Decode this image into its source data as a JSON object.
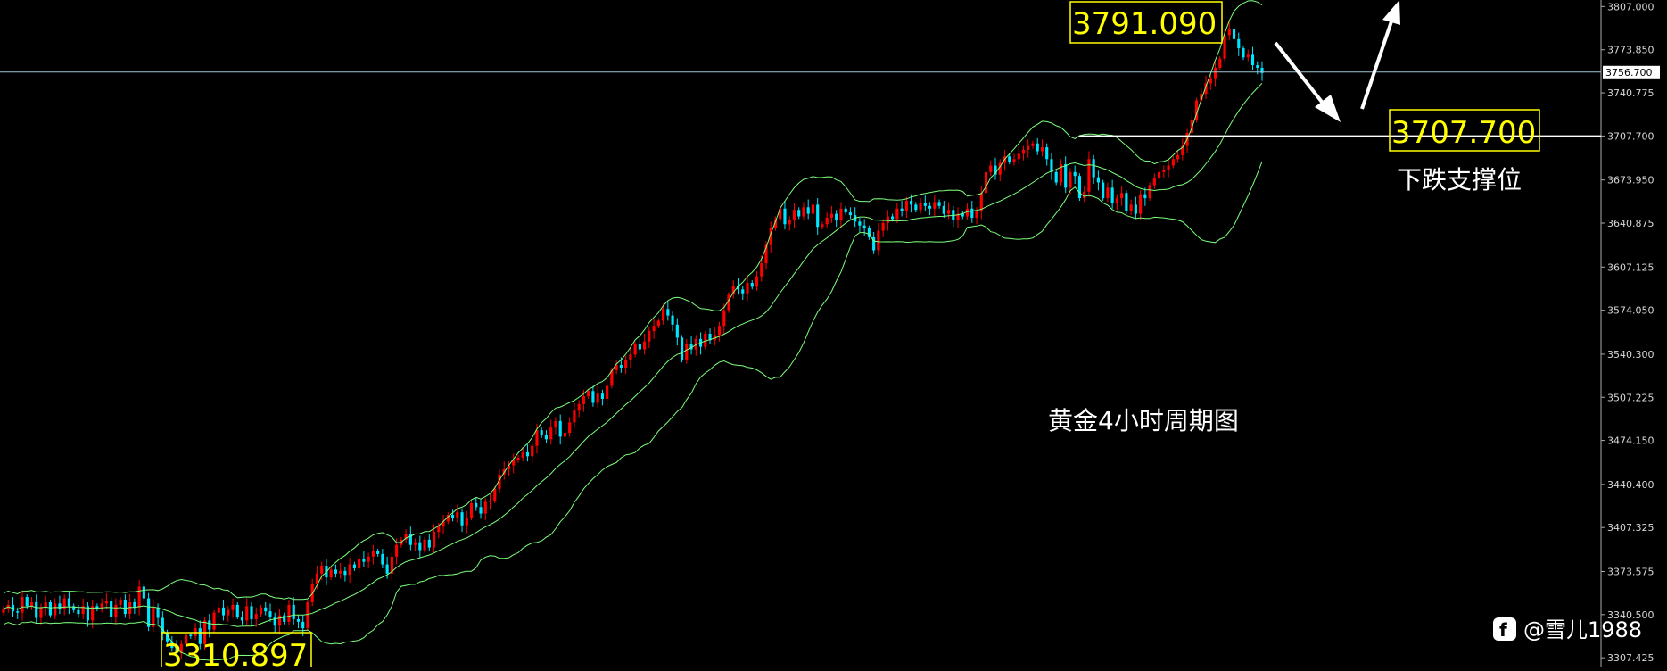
{
  "chart_data": {
    "type": "candlestick",
    "title": "黄金4小时周期图",
    "y_axis": {
      "ticks": [
        "3807.000",
        "3773.850",
        "3740.775",
        "3707.700",
        "3673.950",
        "3640.875",
        "3607.125",
        "3574.050",
        "3540.300",
        "3507.225",
        "3474.150",
        "3440.400",
        "3407.325",
        "3373.575",
        "3340.500",
        "3307.425"
      ],
      "current_price_label": "3756.700",
      "ylim": [
        3300,
        3812
      ]
    },
    "annotations": {
      "high": "3791.090",
      "low": "3310.897",
      "support": "3707.700",
      "support_label": "下跌支撑位",
      "chart_caption": "黄金4小时周期图"
    },
    "indicator": "bollinger_bands",
    "colors": {
      "bull": "#ff0000",
      "bear": "#00e5ff",
      "bands": "#7cff7c",
      "price_line": "#a0c8d8",
      "support_line": "#ffffff",
      "label_box_border": "#ffff00",
      "label_text": "#ffff00"
    },
    "candles": [
      [
        3345,
        3348,
        3343,
        3342,
        3354,
        3347,
        3350,
        3338
      ],
      [
        3346,
        3350,
        3340,
        3349,
        3345,
        3353,
        3347,
        3344
      ],
      [
        3341,
        3347,
        3336,
        3347,
        3345,
        3349,
        3351,
        3339
      ],
      [
        3348,
        3352,
        3341,
        3350,
        3346,
        3362,
        3353,
        3331
      ],
      [
        3346,
        3338,
        3327,
        3320,
        3315,
        3311,
        3318,
        3325
      ],
      [
        3324,
        3330,
        3318,
        3336,
        3329,
        3342,
        3346,
        3340
      ],
      [
        3344,
        3348,
        3339,
        3336,
        3347,
        3337,
        3341,
        3346
      ],
      [
        3343,
        3339,
        3332,
        3340,
        3335,
        3348,
        3337,
        3335
      ],
      [
        3330,
        3350,
        3364,
        3372,
        3378,
        3369,
        3375,
        3372
      ],
      [
        3374,
        3371,
        3379,
        3376,
        3383,
        3381,
        3385,
        3389
      ],
      [
        3387,
        3379,
        3372,
        3385,
        3394,
        3398,
        3402,
        3394
      ],
      [
        3396,
        3390,
        3398,
        3392,
        3404,
        3408,
        3412,
        3417
      ],
      [
        3415,
        3419,
        3409,
        3415,
        3426,
        3423,
        3418,
        3427
      ],
      [
        3428,
        3437,
        3448,
        3452,
        3455,
        3459,
        3461,
        3465
      ],
      [
        3462,
        3470,
        3482,
        3478,
        3475,
        3484,
        3489,
        3477
      ],
      [
        3480,
        3488,
        3497,
        3502,
        3508,
        3512,
        3503,
        3510
      ],
      [
        3506,
        3516,
        3528,
        3532,
        3530,
        3536,
        3540,
        3548
      ],
      [
        3544,
        3550,
        3558,
        3562,
        3566,
        3575,
        3570,
        3563
      ],
      [
        3553,
        3536,
        3548,
        3544,
        3552,
        3546,
        3556,
        3551
      ],
      [
        3555,
        3562,
        3574,
        3586,
        3593,
        3590,
        3587,
        3595
      ],
      [
        3592,
        3600,
        3610,
        3624,
        3637,
        3644,
        3652,
        3640
      ],
      [
        3643,
        3651,
        3646,
        3653,
        3648,
        3655,
        3638,
        3640
      ],
      [
        3645,
        3648,
        3643,
        3652,
        3649,
        3647,
        3642,
        3639
      ],
      [
        3637,
        3630,
        3620,
        3635,
        3641,
        3646,
        3644,
        3652
      ],
      [
        3650,
        3658,
        3655,
        3651,
        3656,
        3654,
        3652,
        3657
      ],
      [
        3654,
        3648,
        3651,
        3643,
        3648,
        3646,
        3652,
        3645
      ],
      [
        3650,
        3664,
        3680,
        3685,
        3678,
        3687,
        3692,
        3688
      ],
      [
        3690,
        3694,
        3697,
        3700,
        3702,
        3696,
        3699,
        3690
      ],
      [
        3680,
        3672,
        3686,
        3668,
        3680,
        3677,
        3660,
        3665
      ],
      [
        3690,
        3676,
        3672,
        3660,
        3668,
        3656,
        3660,
        3664
      ],
      [
        3650,
        3655,
        3648,
        3663,
        3660,
        3670,
        3675,
        3680
      ],
      [
        3682,
        3685,
        3690,
        3693,
        3700,
        3710,
        3720,
        3735
      ],
      [
        3740,
        3748,
        3752,
        3760,
        3767,
        3785,
        3790,
        3782
      ],
      [
        3775,
        3768,
        3770,
        3762,
        3760,
        3756
      ]
    ]
  }
}
